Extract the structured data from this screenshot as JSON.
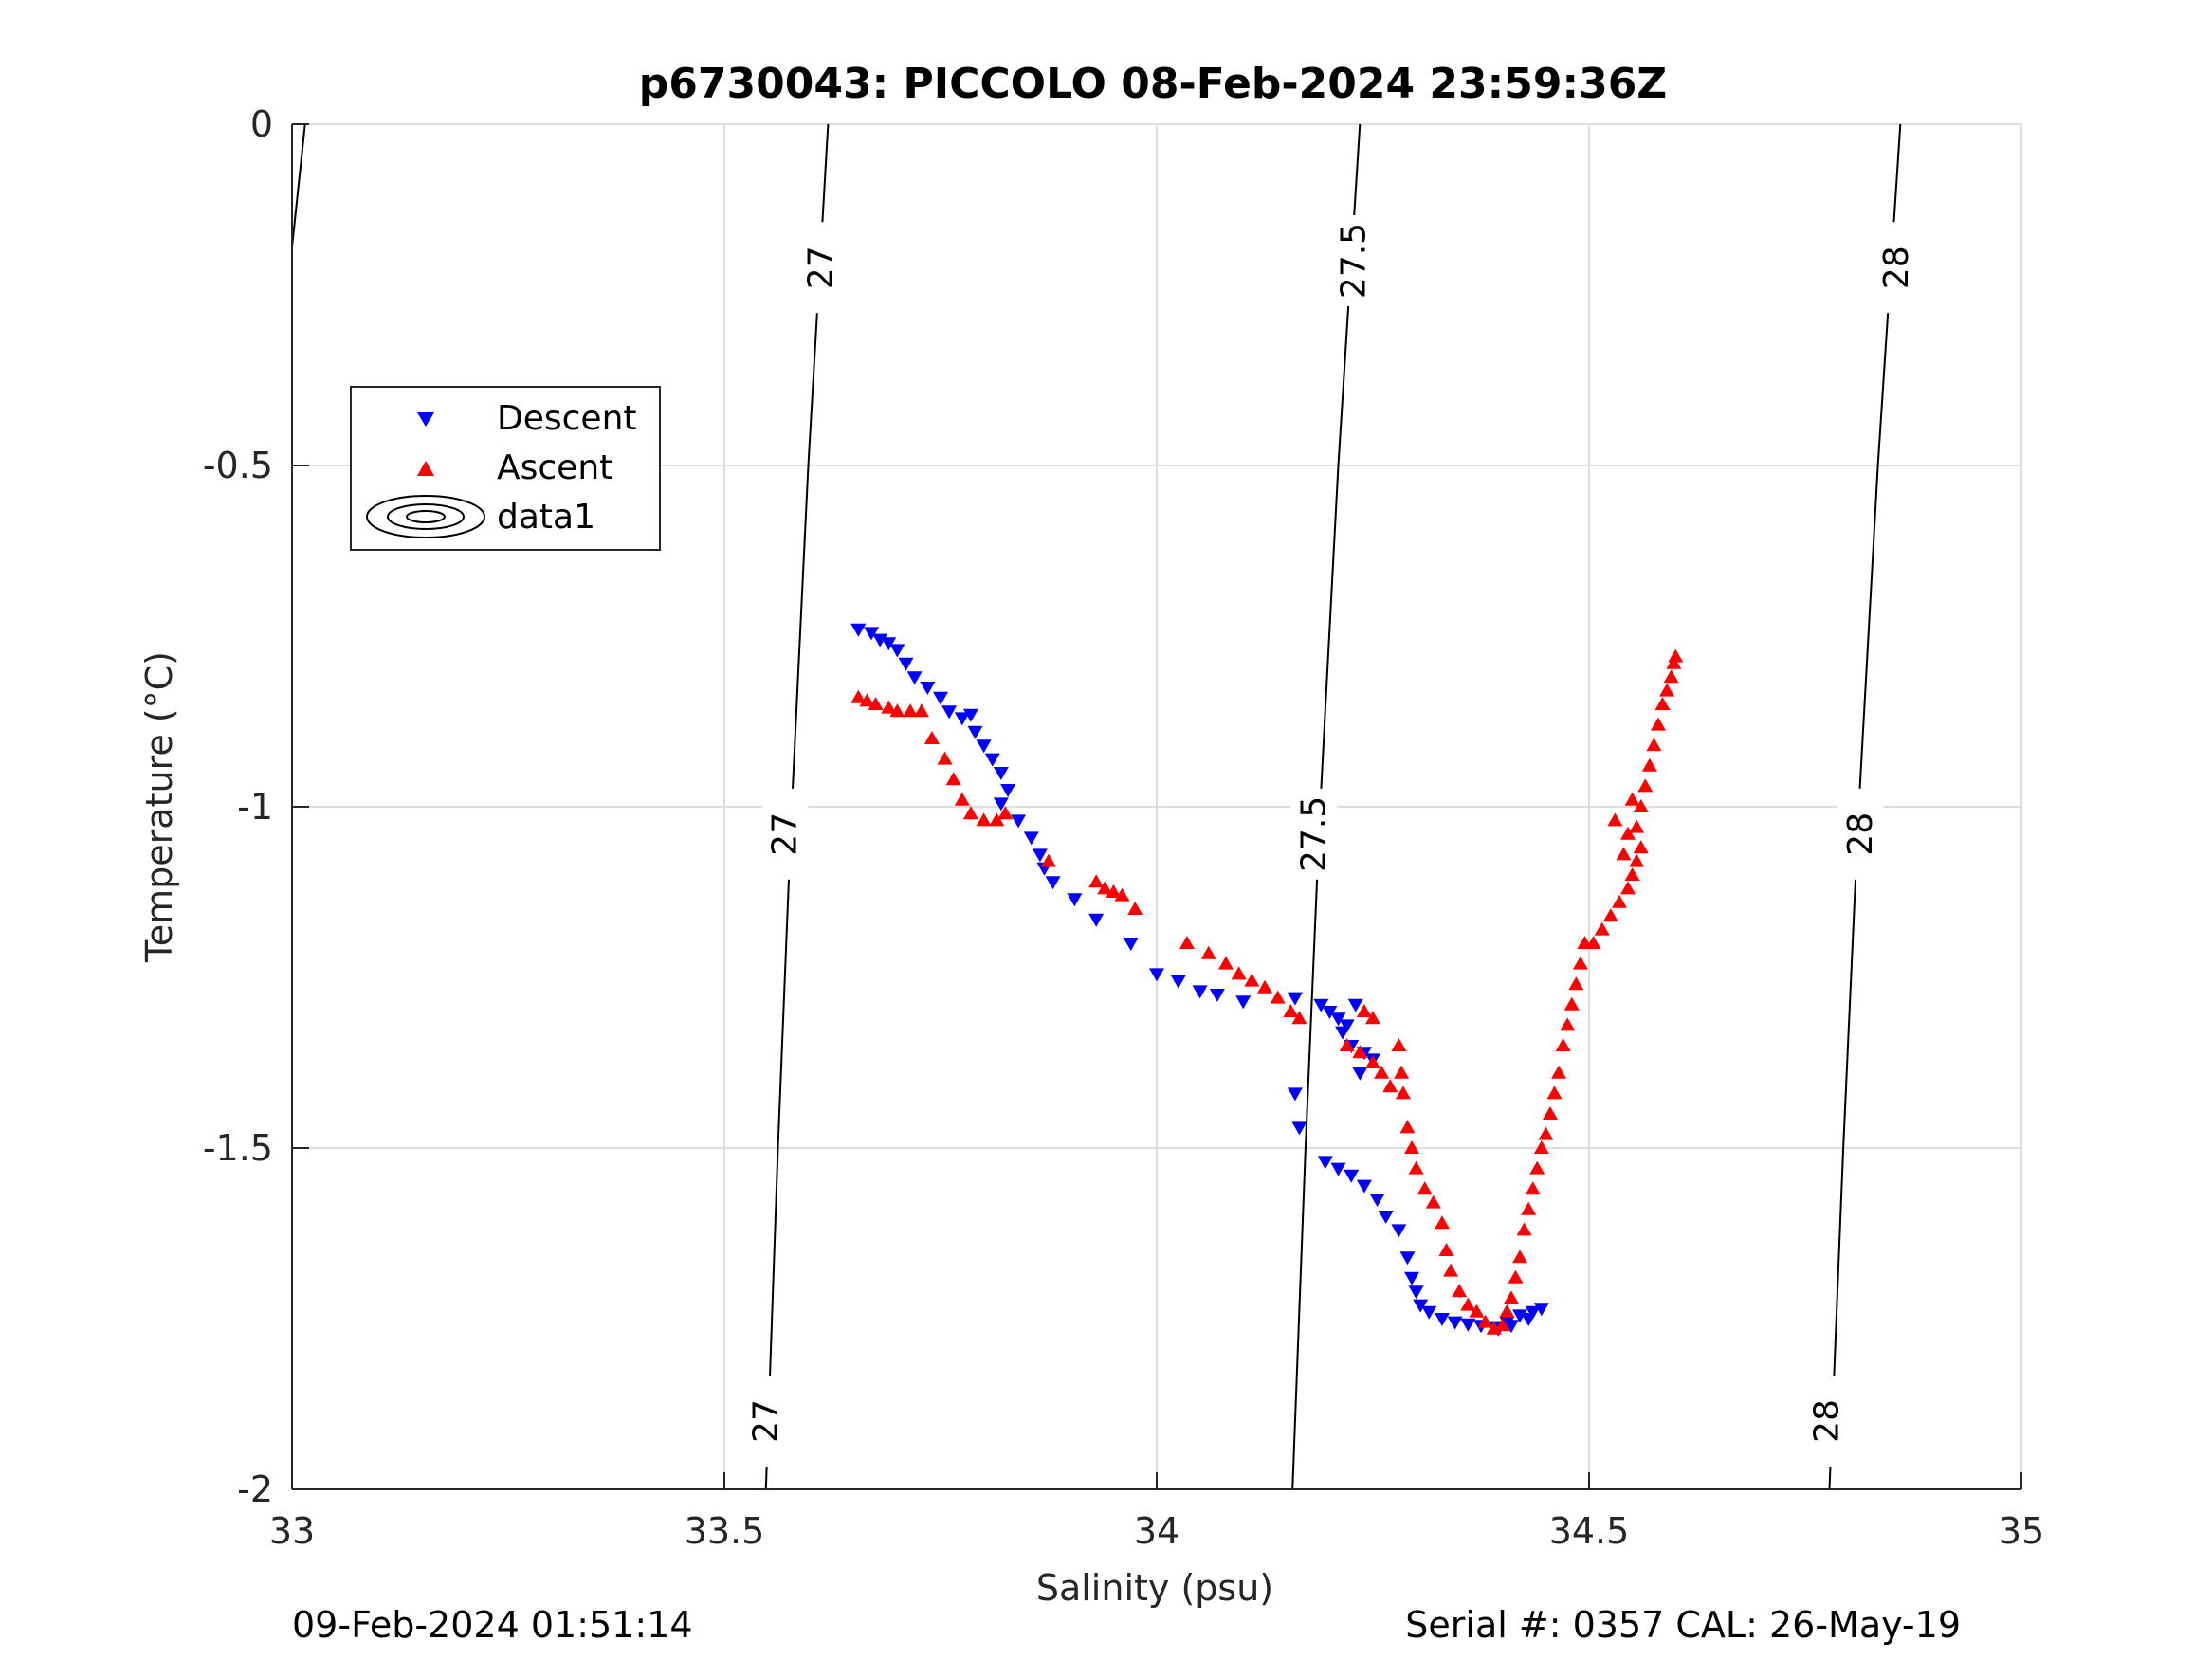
{
  "footer": {
    "left": "09-Feb-2024 01:51:14",
    "right": "Serial #: 0357  CAL: 26-May-19"
  },
  "chart_data": {
    "type": "scatter",
    "title": "p6730043: PICCOLO 08-Feb-2024 23:59:36Z",
    "xlabel": "Salinity (psu)",
    "ylabel": "Temperature (°C)",
    "xlim": [
      33,
      35
    ],
    "ylim": [
      -2,
      0
    ],
    "xticks": [
      33,
      33.5,
      34,
      34.5,
      35
    ],
    "xtick_labels": [
      "33",
      "33.5",
      "34",
      "34.5",
      "35"
    ],
    "yticks": [
      0,
      -0.5,
      -1,
      -1.5,
      -2
    ],
    "ytick_labels": [
      "0",
      "-0.5",
      "-1",
      "-1.5",
      "-2"
    ],
    "grid": true,
    "legend_position": "upper-left",
    "legend": [
      "Descent",
      "Ascent",
      "data1"
    ],
    "colors": {
      "descent": "#0000ff",
      "ascent": "#ff0000",
      "contour": "#000000",
      "grid": "#dddddd"
    },
    "contours": [
      {
        "label": "27",
        "points": [
          [
            33.548,
            -2
          ],
          [
            33.562,
            -1.5
          ],
          [
            33.578,
            -1
          ],
          [
            33.597,
            -0.5
          ],
          [
            33.62,
            0
          ]
        ],
        "label_positions": [
          [
            33.548,
            -1.9
          ],
          [
            33.57,
            -1.04
          ],
          [
            33.612,
            -0.21
          ]
        ]
      },
      {
        "label": "27.5",
        "points": [
          [
            34.157,
            -2
          ],
          [
            34.172,
            -1.5
          ],
          [
            34.189,
            -1
          ],
          [
            34.21,
            -0.5
          ],
          [
            34.235,
            0
          ]
        ],
        "label_positions": [
          [
            34.182,
            -1.04
          ],
          [
            34.228,
            -0.2
          ]
        ]
      },
      {
        "label": "28",
        "points": [
          [
            34.778,
            -2
          ],
          [
            34.794,
            -1.5
          ],
          [
            34.812,
            -1
          ],
          [
            34.834,
            -0.5
          ],
          [
            34.86,
            0
          ]
        ],
        "label_positions": [
          [
            34.775,
            -1.9
          ],
          [
            34.814,
            -1.04
          ],
          [
            34.856,
            -0.21
          ]
        ]
      },
      {
        "label": "",
        "points": [
          [
            33.0,
            -0.18
          ],
          [
            33.015,
            0
          ]
        ],
        "label_positions": []
      }
    ],
    "series": [
      {
        "name": "Descent",
        "marker": "triangle-down",
        "points": [
          [
            33.655,
            -0.74
          ],
          [
            33.67,
            -0.745
          ],
          [
            33.68,
            -0.755
          ],
          [
            33.69,
            -0.76
          ],
          [
            33.7,
            -0.77
          ],
          [
            33.71,
            -0.79
          ],
          [
            33.72,
            -0.81
          ],
          [
            33.735,
            -0.825
          ],
          [
            33.75,
            -0.84
          ],
          [
            33.76,
            -0.86
          ],
          [
            33.775,
            -0.87
          ],
          [
            33.785,
            -0.865
          ],
          [
            33.79,
            -0.89
          ],
          [
            33.8,
            -0.91
          ],
          [
            33.81,
            -0.93
          ],
          [
            33.82,
            -0.95
          ],
          [
            33.828,
            -0.975
          ],
          [
            33.82,
            -0.995
          ],
          [
            33.84,
            -1.02
          ],
          [
            33.855,
            -1.045
          ],
          [
            33.865,
            -1.07
          ],
          [
            33.87,
            -1.09
          ],
          [
            33.88,
            -1.11
          ],
          [
            33.905,
            -1.135
          ],
          [
            33.93,
            -1.165
          ],
          [
            33.97,
            -1.2
          ],
          [
            34.0,
            -1.245
          ],
          [
            34.025,
            -1.255
          ],
          [
            34.05,
            -1.27
          ],
          [
            34.07,
            -1.275
          ],
          [
            34.1,
            -1.285
          ],
          [
            34.16,
            -1.28
          ],
          [
            34.19,
            -1.29
          ],
          [
            34.2,
            -1.3
          ],
          [
            34.21,
            -1.31
          ],
          [
            34.22,
            -1.32
          ],
          [
            34.23,
            -1.29
          ],
          [
            34.215,
            -1.33
          ],
          [
            34.225,
            -1.35
          ],
          [
            34.24,
            -1.36
          ],
          [
            34.25,
            -1.37
          ],
          [
            34.235,
            -1.39
          ],
          [
            34.16,
            -1.42
          ],
          [
            34.165,
            -1.47
          ],
          [
            34.195,
            -1.52
          ],
          [
            34.21,
            -1.53
          ],
          [
            34.225,
            -1.54
          ],
          [
            34.24,
            -1.555
          ],
          [
            34.255,
            -1.575
          ],
          [
            34.265,
            -1.6
          ],
          [
            34.28,
            -1.62
          ],
          [
            34.29,
            -1.66
          ],
          [
            34.295,
            -1.69
          ],
          [
            34.3,
            -1.71
          ],
          [
            34.305,
            -1.73
          ],
          [
            34.315,
            -1.74
          ],
          [
            34.33,
            -1.75
          ],
          [
            34.345,
            -1.755
          ],
          [
            34.36,
            -1.758
          ],
          [
            34.375,
            -1.76
          ],
          [
            34.39,
            -1.762
          ],
          [
            34.405,
            -1.755
          ],
          [
            34.42,
            -1.745
          ],
          [
            34.435,
            -1.74
          ],
          [
            34.445,
            -1.735
          ],
          [
            34.43,
            -1.75
          ],
          [
            34.41,
            -1.76
          ],
          [
            34.395,
            -1.765
          ]
        ]
      },
      {
        "name": "Ascent",
        "marker": "triangle-up",
        "points": [
          [
            33.655,
            -0.84
          ],
          [
            33.665,
            -0.845
          ],
          [
            33.675,
            -0.85
          ],
          [
            33.69,
            -0.855
          ],
          [
            33.7,
            -0.86
          ],
          [
            33.715,
            -0.86
          ],
          [
            33.728,
            -0.86
          ],
          [
            33.74,
            -0.9
          ],
          [
            33.755,
            -0.93
          ],
          [
            33.765,
            -0.96
          ],
          [
            33.775,
            -0.99
          ],
          [
            33.785,
            -1.01
          ],
          [
            33.8,
            -1.02
          ],
          [
            33.815,
            -1.02
          ],
          [
            33.825,
            -1.01
          ],
          [
            33.875,
            -1.08
          ],
          [
            33.93,
            -1.11
          ],
          [
            33.94,
            -1.12
          ],
          [
            33.95,
            -1.125
          ],
          [
            33.96,
            -1.13
          ],
          [
            33.975,
            -1.15
          ],
          [
            34.035,
            -1.2
          ],
          [
            34.06,
            -1.215
          ],
          [
            34.08,
            -1.23
          ],
          [
            34.095,
            -1.245
          ],
          [
            34.11,
            -1.255
          ],
          [
            34.125,
            -1.265
          ],
          [
            34.14,
            -1.28
          ],
          [
            34.155,
            -1.3
          ],
          [
            34.165,
            -1.31
          ],
          [
            34.24,
            -1.3
          ],
          [
            34.25,
            -1.31
          ],
          [
            34.22,
            -1.35
          ],
          [
            34.235,
            -1.36
          ],
          [
            34.25,
            -1.375
          ],
          [
            34.26,
            -1.39
          ],
          [
            34.27,
            -1.41
          ],
          [
            34.28,
            -1.35
          ],
          [
            34.283,
            -1.39
          ],
          [
            34.285,
            -1.42
          ],
          [
            34.29,
            -1.47
          ],
          [
            34.295,
            -1.5
          ],
          [
            34.3,
            -1.53
          ],
          [
            34.31,
            -1.56
          ],
          [
            34.32,
            -1.58
          ],
          [
            34.33,
            -1.61
          ],
          [
            34.335,
            -1.65
          ],
          [
            34.34,
            -1.68
          ],
          [
            34.35,
            -1.71
          ],
          [
            34.36,
            -1.73
          ],
          [
            34.37,
            -1.74
          ],
          [
            34.38,
            -1.755
          ],
          [
            34.39,
            -1.765
          ],
          [
            34.4,
            -1.76
          ],
          [
            34.405,
            -1.74
          ],
          [
            34.41,
            -1.72
          ],
          [
            34.415,
            -1.69
          ],
          [
            34.42,
            -1.66
          ],
          [
            34.425,
            -1.62
          ],
          [
            34.43,
            -1.59
          ],
          [
            34.435,
            -1.56
          ],
          [
            34.44,
            -1.53
          ],
          [
            34.445,
            -1.5
          ],
          [
            34.45,
            -1.48
          ],
          [
            34.455,
            -1.45
          ],
          [
            34.46,
            -1.42
          ],
          [
            34.465,
            -1.39
          ],
          [
            34.47,
            -1.35
          ],
          [
            34.475,
            -1.32
          ],
          [
            34.48,
            -1.29
          ],
          [
            34.485,
            -1.26
          ],
          [
            34.49,
            -1.23
          ],
          [
            34.495,
            -1.2
          ],
          [
            34.505,
            -1.2
          ],
          [
            34.515,
            -1.18
          ],
          [
            34.525,
            -1.16
          ],
          [
            34.535,
            -1.14
          ],
          [
            34.545,
            -1.12
          ],
          [
            34.55,
            -1.1
          ],
          [
            34.555,
            -1.08
          ],
          [
            34.56,
            -1.06
          ],
          [
            34.555,
            -1.03
          ],
          [
            34.56,
            -1.0
          ],
          [
            34.565,
            -0.97
          ],
          [
            34.57,
            -0.94
          ],
          [
            34.575,
            -0.91
          ],
          [
            34.58,
            -0.88
          ],
          [
            34.585,
            -0.85
          ],
          [
            34.59,
            -0.83
          ],
          [
            34.595,
            -0.81
          ],
          [
            34.598,
            -0.79
          ],
          [
            34.6,
            -0.78
          ],
          [
            34.54,
            -1.07
          ],
          [
            34.545,
            -1.04
          ],
          [
            34.55,
            -0.99
          ],
          [
            34.53,
            -1.02
          ]
        ]
      }
    ]
  }
}
